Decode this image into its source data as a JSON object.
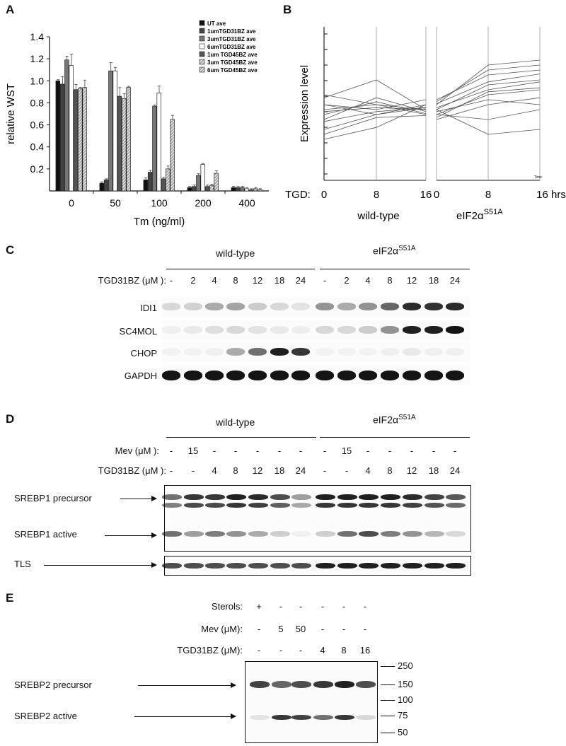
{
  "panels": {
    "a": "A",
    "b": "B",
    "c": "C",
    "d": "D",
    "e": "E"
  },
  "chart_data": [
    {
      "type": "bar",
      "panel": "A",
      "title": "",
      "xlabel": "Tm (ng/ml)",
      "ylabel": "relative WST",
      "ylim": [
        0,
        1.4
      ],
      "yticks": [
        "0.2",
        "0.4",
        "0.6",
        "0.8",
        "1.0",
        "1.2",
        "1.4"
      ],
      "categories": [
        "0",
        "50",
        "100",
        "200",
        "400"
      ],
      "legend_position": "top-right",
      "series": [
        {
          "name": "UT ave",
          "color": "#111111",
          "pattern": "solid",
          "values": [
            1.0,
            0.07,
            0.1,
            0.03,
            0.03
          ]
        },
        {
          "name": "1umTGD31BZ ave",
          "color": "#444444",
          "pattern": "solid",
          "values": [
            0.97,
            0.1,
            0.17,
            0.04,
            0.03
          ]
        },
        {
          "name": "3umTGD31BZ ave",
          "color": "#777777",
          "pattern": "solid",
          "values": [
            1.19,
            1.09,
            0.77,
            0.14,
            0.03
          ]
        },
        {
          "name": "6umTGD31BZ ave",
          "color": "#ffffff",
          "pattern": "open",
          "values": [
            1.14,
            1.09,
            0.89,
            0.24,
            0.02
          ]
        },
        {
          "name": "1um TGD45BZ ave",
          "color": "#555555",
          "pattern": "solid",
          "values": [
            0.92,
            0.86,
            0.11,
            0.04,
            0.01
          ]
        },
        {
          "name": "3um TGD45BZ ave",
          "color": "#888888",
          "pattern": "hatch",
          "values": [
            0.93,
            0.84,
            0.2,
            0.05,
            0.02
          ]
        },
        {
          "name": "6um TGD45BZ ave",
          "color": "#bbbbbb",
          "pattern": "hatch",
          "values": [
            0.94,
            0.94,
            0.65,
            0.16,
            0.01
          ]
        }
      ]
    },
    {
      "type": "line",
      "panel": "B",
      "ylabel": "Expression level",
      "xlabel_prefix": "TGD:",
      "groups": [
        "wild-type",
        "eIF2α"
      ],
      "group_superscript": "S51A",
      "x_ticks_wt": [
        "0",
        "8",
        "16"
      ],
      "x_ticks_mut": [
        "0",
        "8",
        "16 hrs"
      ],
      "corner_label": "Time",
      "series_wt": [
        [
          0.5,
          0.55,
          0.5
        ],
        [
          0.55,
          0.45,
          0.52
        ],
        [
          0.4,
          0.62,
          0.48
        ],
        [
          0.3,
          0.45,
          0.55
        ],
        [
          0.65,
          0.55,
          0.45
        ],
        [
          0.45,
          0.58,
          0.46
        ],
        [
          0.62,
          0.8,
          0.5
        ],
        [
          0.25,
          0.42,
          0.44
        ],
        [
          0.2,
          0.32,
          0.55
        ],
        [
          0.55,
          0.5,
          0.6
        ],
        [
          0.48,
          0.52,
          0.5
        ],
        [
          0.38,
          0.48,
          0.52
        ]
      ],
      "series_mut": [
        [
          0.5,
          0.75,
          0.8
        ],
        [
          0.55,
          0.95,
          1.0
        ],
        [
          0.45,
          0.65,
          0.7
        ],
        [
          0.6,
          0.85,
          0.9
        ],
        [
          0.4,
          0.55,
          0.62
        ],
        [
          0.52,
          0.7,
          0.78
        ],
        [
          0.48,
          0.6,
          0.55
        ],
        [
          0.58,
          0.9,
          0.95
        ],
        [
          0.45,
          0.4,
          0.5
        ],
        [
          0.5,
          0.25,
          0.3
        ],
        [
          0.42,
          0.68,
          0.72
        ],
        [
          0.56,
          0.78,
          0.86
        ]
      ]
    }
  ],
  "panelC": {
    "group_wt": "wild-type",
    "group_mut": "eIF2α",
    "group_mut_sup": "S51A",
    "row_label": "TGD31BZ (μM ):",
    "lanes": [
      "-",
      "2",
      "4",
      "8",
      "12",
      "18",
      "24",
      "-",
      "2",
      "4",
      "8",
      "12",
      "18",
      "24"
    ],
    "blots": [
      "IDI1",
      "SC4MOL",
      "CHOP",
      "GAPDH"
    ]
  },
  "panelD": {
    "group_wt": "wild-type",
    "group_mut": "eIF2α",
    "group_mut_sup": "S51A",
    "mev_label": "Mev  (μM ):",
    "mev": [
      "-",
      "15",
      "-",
      "-",
      "-",
      "-",
      "-",
      "-",
      "15",
      "-",
      "-",
      "-",
      "-",
      "-"
    ],
    "tgd_label": "TGD31BZ (μM ):",
    "tgd": [
      "-",
      "-",
      "4",
      "8",
      "12",
      "18",
      "24",
      "-",
      "-",
      "4",
      "8",
      "12",
      "18",
      "24"
    ],
    "blot_labels": [
      "SREBP1 precursor",
      "SREBP1 active",
      "TLS"
    ]
  },
  "panelE": {
    "sterols_label": "Sterols:",
    "sterols": [
      "+",
      "-",
      "-",
      "-",
      "-",
      "-"
    ],
    "mev_label": "Mev  (μM):",
    "mev": [
      "-",
      "5",
      "50",
      "-",
      "-",
      "-"
    ],
    "tgd_label": "TGD31BZ (μM):",
    "tgd": [
      "-",
      "-",
      "-",
      "4",
      "8",
      "16"
    ],
    "blot_labels": [
      "SREBP2 precursor",
      "SREBP2 active"
    ],
    "markers": [
      "250",
      "150",
      "100",
      "75",
      "50"
    ]
  }
}
